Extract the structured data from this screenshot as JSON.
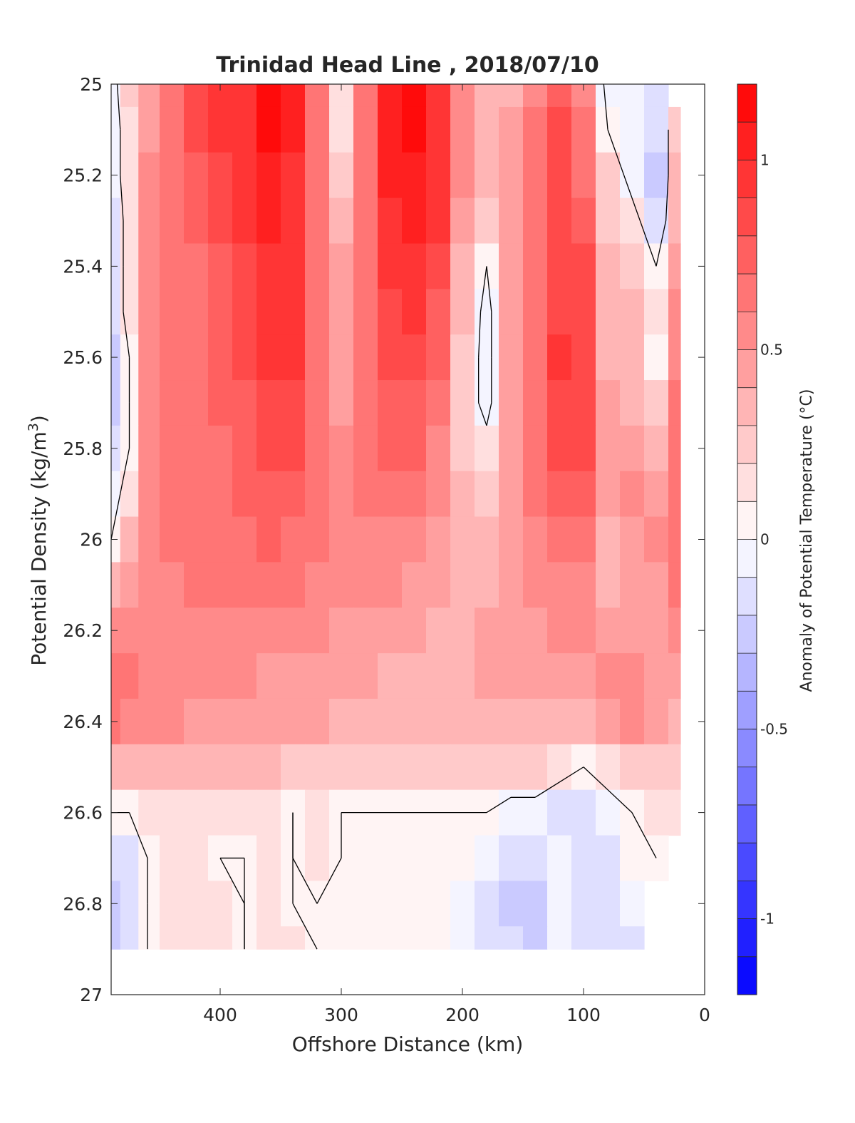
{
  "chart_data": {
    "type": "heatmap",
    "title": "Trinidad Head Line , 2018/07/10",
    "xlabel": "Offshore Distance (km)",
    "ylabel_main": "Potential Density (kg/m",
    "ylabel_sup": "3",
    "ylabel_close": ")",
    "colorbar_label": "Anomaly of Potential Temperature (°C)",
    "xlim": [
      490,
      0
    ],
    "ylim": [
      25,
      27
    ],
    "x_reversed": true,
    "y_reversed": true,
    "x_ticks": [
      400,
      300,
      200,
      100,
      0
    ],
    "x_tick_labels": [
      "400",
      "300",
      "200",
      "100",
      "0"
    ],
    "y_ticks": [
      25,
      25.2,
      25.4,
      25.6,
      25.8,
      26,
      26.2,
      26.4,
      26.6,
      26.8,
      27
    ],
    "y_tick_labels": [
      "25",
      "25.2",
      "25.4",
      "25.6",
      "25.8",
      "26",
      "26.2",
      "26.4",
      "26.6",
      "26.8",
      "27"
    ],
    "colorbar_range": [
      -1.2,
      1.2
    ],
    "colorbar_levels": 24,
    "colorbar_ticks": [
      1,
      0.5,
      0,
      -0.5,
      -1
    ],
    "colorbar_tick_labels": [
      "1",
      "0.5",
      "0",
      "-0.5",
      "-1"
    ],
    "colormap": {
      "low": "#0000ff",
      "mid": "#ffffff",
      "high": "#ff0000"
    },
    "data_x_range": [
      490,
      20
    ],
    "data_y_range": [
      25,
      26.9
    ],
    "zero_contour_color": "#000000",
    "stations_x": [
      490,
      475,
      460,
      440,
      420,
      400,
      380,
      360,
      340,
      320,
      300,
      280,
      260,
      240,
      220,
      200,
      180,
      160,
      140,
      120,
      100,
      80,
      60,
      40,
      20
    ],
    "density_levels": [
      25.0,
      25.1,
      25.2,
      25.3,
      25.4,
      25.5,
      25.6,
      25.7,
      25.8,
      25.9,
      26.0,
      26.1,
      26.2,
      26.3,
      26.4,
      26.5,
      26.6,
      26.7,
      26.8,
      26.9
    ],
    "z": [
      [
        -0.1,
        0.2,
        0.4,
        0.6,
        0.8,
        0.9,
        0.9,
        1.1,
        1.0,
        0.6,
        0.1,
        0.6,
        1.0,
        1.1,
        0.9,
        0.5,
        0.3,
        0.3,
        0.5,
        0.7,
        0.5,
        -0.1,
        -0.1,
        -0.2,
        null
      ],
      [
        -0.1,
        0.1,
        0.4,
        0.6,
        0.8,
        0.9,
        0.9,
        1.1,
        1.0,
        0.6,
        0.1,
        0.6,
        1.0,
        1.1,
        0.9,
        0.5,
        0.3,
        0.4,
        0.6,
        0.8,
        0.6,
        0.0,
        -0.1,
        -0.2,
        0.2
      ],
      [
        -0.1,
        0.1,
        0.5,
        0.6,
        0.7,
        0.8,
        0.9,
        1.0,
        0.9,
        0.6,
        0.2,
        0.6,
        1.0,
        1.0,
        0.9,
        0.5,
        0.3,
        0.4,
        0.6,
        0.8,
        0.6,
        0.2,
        -0.1,
        -0.3,
        0.3
      ],
      [
        -0.2,
        0.1,
        0.5,
        0.6,
        0.7,
        0.8,
        0.9,
        1.0,
        0.9,
        0.6,
        0.3,
        0.6,
        0.9,
        1.0,
        0.9,
        0.4,
        0.2,
        0.4,
        0.6,
        0.8,
        0.7,
        0.2,
        0.1,
        -0.2,
        0.3
      ],
      [
        -0.2,
        0.1,
        0.5,
        0.6,
        0.6,
        0.7,
        0.8,
        0.9,
        0.9,
        0.6,
        0.4,
        0.6,
        0.9,
        0.9,
        0.8,
        0.3,
        0.0,
        0.4,
        0.6,
        0.8,
        0.8,
        0.3,
        0.2,
        0.0,
        0.4
      ],
      [
        -0.2,
        0.1,
        0.5,
        0.6,
        0.6,
        0.7,
        0.8,
        0.9,
        0.9,
        0.6,
        0.4,
        0.6,
        0.8,
        0.9,
        0.7,
        0.3,
        -0.1,
        0.4,
        0.6,
        0.8,
        0.8,
        0.3,
        0.3,
        0.1,
        0.5
      ],
      [
        -0.3,
        0.0,
        0.5,
        0.6,
        0.6,
        0.7,
        0.8,
        0.9,
        0.9,
        0.6,
        0.4,
        0.6,
        0.8,
        0.8,
        0.7,
        0.2,
        -0.1,
        0.4,
        0.6,
        0.9,
        0.8,
        0.3,
        0.3,
        0.0,
        0.5
      ],
      [
        -0.3,
        0.0,
        0.5,
        0.6,
        0.6,
        0.7,
        0.7,
        0.8,
        0.8,
        0.6,
        0.4,
        0.6,
        0.7,
        0.7,
        0.6,
        0.2,
        -0.1,
        0.4,
        0.6,
        0.8,
        0.8,
        0.4,
        0.3,
        0.2,
        0.6
      ],
      [
        -0.2,
        0.0,
        0.5,
        0.6,
        0.6,
        0.6,
        0.7,
        0.8,
        0.8,
        0.6,
        0.5,
        0.6,
        0.7,
        0.7,
        0.5,
        0.2,
        0.1,
        0.4,
        0.6,
        0.8,
        0.8,
        0.4,
        0.4,
        0.3,
        0.6
      ],
      [
        -0.1,
        0.1,
        0.5,
        0.6,
        0.6,
        0.6,
        0.7,
        0.7,
        0.7,
        0.6,
        0.5,
        0.6,
        0.6,
        0.6,
        0.5,
        0.3,
        0.2,
        0.4,
        0.6,
        0.7,
        0.7,
        0.4,
        0.5,
        0.4,
        0.6
      ],
      [
        0.0,
        0.3,
        0.5,
        0.6,
        0.6,
        0.6,
        0.6,
        0.7,
        0.6,
        0.6,
        0.5,
        0.5,
        0.5,
        0.5,
        0.4,
        0.3,
        0.3,
        0.4,
        0.5,
        0.6,
        0.6,
        0.3,
        0.4,
        0.5,
        0.6
      ],
      [
        0.3,
        0.4,
        0.5,
        0.5,
        0.6,
        0.6,
        0.6,
        0.6,
        0.6,
        0.5,
        0.5,
        0.5,
        0.5,
        0.4,
        0.4,
        0.3,
        0.3,
        0.4,
        0.5,
        0.5,
        0.5,
        0.3,
        0.4,
        0.4,
        0.6
      ],
      [
        0.5,
        0.5,
        0.5,
        0.5,
        0.5,
        0.5,
        0.5,
        0.5,
        0.5,
        0.5,
        0.4,
        0.4,
        0.4,
        0.4,
        0.3,
        0.3,
        0.4,
        0.4,
        0.4,
        0.5,
        0.5,
        0.4,
        0.4,
        0.4,
        0.5
      ],
      [
        0.6,
        0.6,
        0.5,
        0.5,
        0.5,
        0.5,
        0.5,
        0.4,
        0.4,
        0.4,
        0.4,
        0.4,
        0.3,
        0.3,
        0.3,
        0.3,
        0.4,
        0.4,
        0.4,
        0.4,
        0.4,
        0.5,
        0.5,
        0.4,
        0.4
      ],
      [
        0.6,
        0.5,
        0.5,
        0.5,
        0.4,
        0.4,
        0.4,
        0.4,
        0.4,
        0.4,
        0.3,
        0.3,
        0.3,
        0.3,
        0.3,
        0.3,
        0.3,
        0.3,
        0.3,
        0.3,
        0.3,
        0.4,
        0.5,
        0.4,
        0.3
      ],
      [
        0.3,
        0.3,
        0.3,
        0.3,
        0.3,
        0.3,
        0.3,
        0.3,
        0.2,
        0.2,
        0.2,
        0.2,
        0.2,
        0.2,
        0.2,
        0.2,
        0.2,
        0.2,
        0.2,
        0.1,
        0.0,
        0.1,
        0.2,
        0.2,
        0.2
      ],
      [
        0.0,
        0.0,
        0.1,
        0.1,
        0.1,
        0.1,
        0.1,
        0.1,
        0.0,
        0.1,
        0.0,
        0.0,
        0.0,
        0.0,
        0.0,
        0.0,
        0.0,
        -0.1,
        -0.1,
        -0.2,
        -0.2,
        -0.1,
        0.0,
        0.1,
        0.1
      ],
      [
        -0.2,
        -0.2,
        0.0,
        0.1,
        0.1,
        0.0,
        0.0,
        0.1,
        0.0,
        0.1,
        0.0,
        0.0,
        0.0,
        0.0,
        0.0,
        0.0,
        -0.1,
        -0.2,
        -0.2,
        -0.1,
        -0.2,
        -0.2,
        0.0,
        0.0,
        null
      ],
      [
        -0.3,
        -0.2,
        0.0,
        0.1,
        0.1,
        0.1,
        0.0,
        0.1,
        0.0,
        0.0,
        0.0,
        0.0,
        0.0,
        0.0,
        0.0,
        -0.1,
        -0.2,
        -0.3,
        -0.3,
        -0.1,
        -0.2,
        -0.2,
        -0.1,
        null,
        null
      ],
      [
        -0.3,
        -0.2,
        0.0,
        0.1,
        0.1,
        0.1,
        0.0,
        0.1,
        0.1,
        0.0,
        0.0,
        0.0,
        0.0,
        0.0,
        0.0,
        -0.1,
        -0.2,
        -0.2,
        -0.3,
        -0.1,
        -0.2,
        -0.2,
        -0.2,
        null,
        null
      ]
    ]
  }
}
